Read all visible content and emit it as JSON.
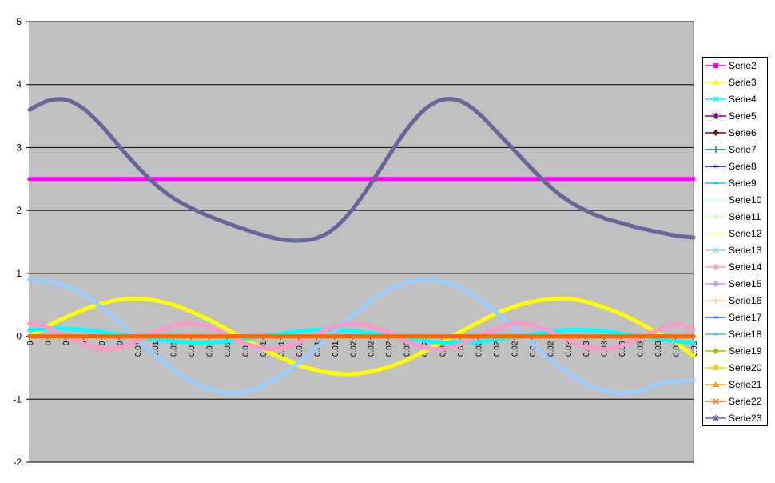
{
  "chart_data": {
    "type": "line",
    "title": "",
    "xlabel": "",
    "ylabel": "",
    "ylim": [
      -2,
      5
    ],
    "yticks": [
      "5",
      "4",
      "3",
      "2",
      "1",
      "0",
      "-1",
      "-2"
    ],
    "grid": true,
    "legend_position": "right",
    "x": [
      "0",
      "0",
      "0",
      "0",
      "0",
      "0",
      "0.01",
      "0.01",
      "0.01",
      "0.01",
      "0.01",
      "0.01",
      "0.01",
      "0.01",
      "0.01",
      "0.01",
      "0.01",
      "0.01",
      "0.02",
      "0.02",
      "0.02",
      "0.02",
      "0.02",
      "0.02",
      "0.02",
      "0.02",
      "0.02",
      "0.02",
      "0.02",
      "0.02",
      "0.03",
      "0.03",
      "0.03",
      "0.03",
      "0.03",
      "0.03",
      "0.03",
      "0.03"
    ],
    "plot_background": "#c0c0c0",
    "series": [
      {
        "name": "Serie2",
        "color": "#ff00ff",
        "values": [
          2.5,
          2.5,
          2.5,
          2.5,
          2.5,
          2.5,
          2.5,
          2.5,
          2.5,
          2.5,
          2.5,
          2.5,
          2.5,
          2.5,
          2.5,
          2.5,
          2.5,
          2.5,
          2.5,
          2.5,
          2.5,
          2.5,
          2.5,
          2.5,
          2.5,
          2.5,
          2.5,
          2.5,
          2.5,
          2.5,
          2.5,
          2.5,
          2.5,
          2.5,
          2.5,
          2.5,
          2.5,
          2.5
        ]
      },
      {
        "name": "Serie3",
        "color": "#ffff00",
        "values": [
          0.0,
          0.16,
          0.3,
          0.42,
          0.52,
          0.58,
          0.6,
          0.57,
          0.5,
          0.39,
          0.26,
          0.11,
          -0.05,
          -0.2,
          -0.34,
          -0.46,
          -0.54,
          -0.59,
          -0.6,
          -0.56,
          -0.49,
          -0.38,
          -0.24,
          -0.09,
          0.07,
          0.22,
          0.36,
          0.47,
          0.55,
          0.59,
          0.6,
          0.55,
          0.46,
          0.35,
          0.21,
          0.05,
          -0.1,
          -0.32
        ]
      },
      {
        "name": "Serie4",
        "color": "#00ffff",
        "values": [
          0.1,
          0.12,
          0.12,
          0.1,
          0.07,
          0.03,
          -0.01,
          -0.05,
          -0.08,
          -0.1,
          -0.1,
          -0.08,
          -0.04,
          0.0,
          0.04,
          0.08,
          0.1,
          0.1,
          0.08,
          0.05,
          0.01,
          -0.03,
          -0.07,
          -0.1,
          -0.1,
          -0.09,
          -0.05,
          -0.01,
          0.03,
          0.07,
          0.1,
          0.1,
          0.08,
          0.04,
          0.0,
          -0.04,
          -0.08,
          -0.1
        ]
      },
      {
        "name": "Serie5",
        "color": "#800080",
        "values": [
          0,
          0,
          0,
          0,
          0,
          0,
          0,
          0,
          0,
          0,
          0,
          0,
          0,
          0,
          0,
          0,
          0,
          0,
          0,
          0,
          0,
          0,
          0,
          0,
          0,
          0,
          0,
          0,
          0,
          0,
          0,
          0,
          0,
          0,
          0,
          0,
          0,
          0
        ]
      },
      {
        "name": "Serie6",
        "color": "#800000",
        "values": [
          0,
          0,
          0,
          0,
          0,
          0,
          0,
          0,
          0,
          0,
          0,
          0,
          0,
          0,
          0,
          0,
          0,
          0,
          0,
          0,
          0,
          0,
          0,
          0,
          0,
          0,
          0,
          0,
          0,
          0,
          0,
          0,
          0,
          0,
          0,
          0,
          0,
          0
        ]
      },
      {
        "name": "Serie7",
        "color": "#008080",
        "values": [
          0,
          0,
          0,
          0,
          0,
          0,
          0,
          0,
          0,
          0,
          0,
          0,
          0,
          0,
          0,
          0,
          0,
          0,
          0,
          0,
          0,
          0,
          0,
          0,
          0,
          0,
          0,
          0,
          0,
          0,
          0,
          0,
          0,
          0,
          0,
          0,
          0,
          0
        ]
      },
      {
        "name": "Serie8",
        "color": "#0000ff",
        "values": [
          0,
          0,
          0,
          0,
          0,
          0,
          0,
          0,
          0,
          0,
          0,
          0,
          0,
          0,
          0,
          0,
          0,
          0,
          0,
          0,
          0,
          0,
          0,
          0,
          0,
          0,
          0,
          0,
          0,
          0,
          0,
          0,
          0,
          0,
          0,
          0,
          0,
          0
        ]
      },
      {
        "name": "Serie9",
        "color": "#00ccff",
        "values": [
          0,
          0,
          0,
          0,
          0,
          0,
          0,
          0,
          0,
          0,
          0,
          0,
          0,
          0,
          0,
          0,
          0,
          0,
          0,
          0,
          0,
          0,
          0,
          0,
          0,
          0,
          0,
          0,
          0,
          0,
          0,
          0,
          0,
          0,
          0,
          0,
          0,
          0
        ]
      },
      {
        "name": "Serie10",
        "color": "#ccffff",
        "values": [
          0,
          0,
          0,
          0,
          0,
          0,
          0,
          0,
          0,
          0,
          0,
          0,
          0,
          0,
          0,
          0,
          0,
          0,
          0,
          0,
          0,
          0,
          0,
          0,
          0,
          0,
          0,
          0,
          0,
          0,
          0,
          0,
          0,
          0,
          0,
          0,
          0,
          0
        ]
      },
      {
        "name": "Serie11",
        "color": "#ccffcc",
        "values": [
          0,
          0,
          0,
          0,
          0,
          0,
          0,
          0,
          0,
          0,
          0,
          0,
          0,
          0,
          0,
          0,
          0,
          0,
          0,
          0,
          0,
          0,
          0,
          0,
          0,
          0,
          0,
          0,
          0,
          0,
          0,
          0,
          0,
          0,
          0,
          0,
          0,
          0
        ]
      },
      {
        "name": "Serie12",
        "color": "#ffff99",
        "values": [
          0,
          0,
          0,
          0,
          0,
          0,
          0,
          0,
          0,
          0,
          0,
          0,
          0,
          0,
          0,
          0,
          0,
          0,
          0,
          0,
          0,
          0,
          0,
          0,
          0,
          0,
          0,
          0,
          0,
          0,
          0,
          0,
          0,
          0,
          0,
          0,
          0,
          0
        ]
      },
      {
        "name": "Serie13",
        "color": "#99ccff",
        "values": [
          0.9,
          0.87,
          0.8,
          0.66,
          0.46,
          0.22,
          -0.05,
          -0.3,
          -0.53,
          -0.72,
          -0.84,
          -0.9,
          -0.88,
          -0.79,
          -0.63,
          -0.42,
          -0.18,
          0.08,
          0.33,
          0.55,
          0.73,
          0.85,
          0.9,
          0.87,
          0.77,
          0.6,
          0.38,
          0.13,
          -0.12,
          -0.37,
          -0.58,
          -0.75,
          -0.86,
          -0.9,
          -0.87,
          -0.75,
          -0.72,
          -0.7
        ]
      },
      {
        "name": "Serie14",
        "color": "#ff99cc",
        "values": [
          0.2,
          0.14,
          0.0,
          -0.12,
          -0.2,
          -0.18,
          -0.07,
          0.07,
          0.17,
          0.2,
          0.14,
          0.02,
          -0.11,
          -0.19,
          -0.19,
          -0.1,
          0.04,
          0.15,
          0.2,
          0.16,
          0.05,
          -0.08,
          -0.18,
          -0.2,
          -0.13,
          0.0,
          0.12,
          0.2,
          0.18,
          0.08,
          -0.06,
          -0.17,
          -0.2,
          -0.15,
          -0.03,
          0.1,
          0.19,
          0.1
        ]
      },
      {
        "name": "Serie15",
        "color": "#cc99ff",
        "values": [
          0,
          0,
          0,
          0,
          0,
          0,
          0,
          0,
          0,
          0,
          0,
          0,
          0,
          0,
          0,
          0,
          0,
          0,
          0,
          0,
          0,
          0,
          0,
          0,
          0,
          0,
          0,
          0,
          0,
          0,
          0,
          0,
          0,
          0,
          0,
          0,
          0,
          0
        ]
      },
      {
        "name": "Serie16",
        "color": "#ffcc99",
        "values": [
          0,
          0,
          0,
          0,
          0,
          0,
          0,
          0,
          0,
          0,
          0,
          0,
          0,
          0,
          0,
          0,
          0,
          0,
          0,
          0,
          0,
          0,
          0,
          0,
          0,
          0,
          0,
          0,
          0,
          0,
          0,
          0,
          0,
          0,
          0,
          0,
          0,
          0
        ]
      },
      {
        "name": "Serie17",
        "color": "#3366ff",
        "values": [
          0,
          0,
          0,
          0,
          0,
          0,
          0,
          0,
          0,
          0,
          0,
          0,
          0,
          0,
          0,
          0,
          0,
          0,
          0,
          0,
          0,
          0,
          0,
          0,
          0,
          0,
          0,
          0,
          0,
          0,
          0,
          0,
          0,
          0,
          0,
          0,
          0,
          0
        ]
      },
      {
        "name": "Serie18",
        "color": "#33cccc",
        "values": [
          0,
          0,
          0,
          0,
          0,
          0,
          0,
          0,
          0,
          0,
          0,
          0,
          0,
          0,
          0,
          0,
          0,
          0,
          0,
          0,
          0,
          0,
          0,
          0,
          0,
          0,
          0,
          0,
          0,
          0,
          0,
          0,
          0,
          0,
          0,
          0,
          0,
          0
        ]
      },
      {
        "name": "Serie19",
        "color": "#99cc00",
        "values": [
          0,
          0,
          0,
          0,
          0,
          0,
          0,
          0,
          0,
          0,
          0,
          0,
          0,
          0,
          0,
          0,
          0,
          0,
          0,
          0,
          0,
          0,
          0,
          0,
          0,
          0,
          0,
          0,
          0,
          0,
          0,
          0,
          0,
          0,
          0,
          0,
          0,
          0
        ]
      },
      {
        "name": "Serie20",
        "color": "#ffcc00",
        "values": [
          0,
          0,
          0,
          0,
          0,
          0,
          0,
          0,
          0,
          0,
          0,
          0,
          0,
          0,
          0,
          0,
          0,
          0,
          0,
          0,
          0,
          0,
          0,
          0,
          0,
          0,
          0,
          0,
          0,
          0,
          0,
          0,
          0,
          0,
          0,
          0,
          0,
          0
        ]
      },
      {
        "name": "Serie21",
        "color": "#ff9900",
        "values": [
          0,
          0,
          0,
          0,
          0,
          0,
          0,
          0,
          0,
          0,
          0,
          0,
          0,
          0,
          0,
          0,
          0,
          0,
          0,
          0,
          0,
          0,
          0,
          0,
          0,
          0,
          0,
          0,
          0,
          0,
          0,
          0,
          0,
          0,
          0,
          0,
          0,
          0
        ]
      },
      {
        "name": "Serie22",
        "color": "#ff6600",
        "values": [
          0,
          0,
          0,
          0,
          0,
          0,
          0,
          0,
          0,
          0,
          0,
          0,
          0,
          0,
          0,
          0,
          0,
          0,
          0,
          0,
          0,
          0,
          0,
          0,
          0,
          0,
          0,
          0,
          0,
          0,
          0,
          0,
          0,
          0,
          0,
          0,
          0,
          0
        ]
      },
      {
        "name": "Serie23",
        "color": "#666699",
        "values": [
          3.6,
          3.74,
          3.76,
          3.62,
          3.35,
          3.02,
          2.7,
          2.42,
          2.2,
          2.04,
          1.91,
          1.8,
          1.7,
          1.61,
          1.54,
          1.52,
          1.56,
          1.72,
          2.02,
          2.42,
          2.86,
          3.28,
          3.6,
          3.76,
          3.74,
          3.55,
          3.26,
          2.96,
          2.66,
          2.38,
          2.16,
          2.0,
          1.88,
          1.8,
          1.72,
          1.66,
          1.6,
          1.57
        ]
      }
    ],
    "marker_shapes": [
      "square",
      "triangle",
      "x",
      "star",
      "diamond",
      "plus",
      "dash",
      "dash",
      "dash",
      "circle",
      "dash",
      "x",
      "star",
      "diamond",
      "plus",
      "dash",
      "dash",
      "diamond",
      "square",
      "triangle",
      "x",
      "star"
    ]
  }
}
